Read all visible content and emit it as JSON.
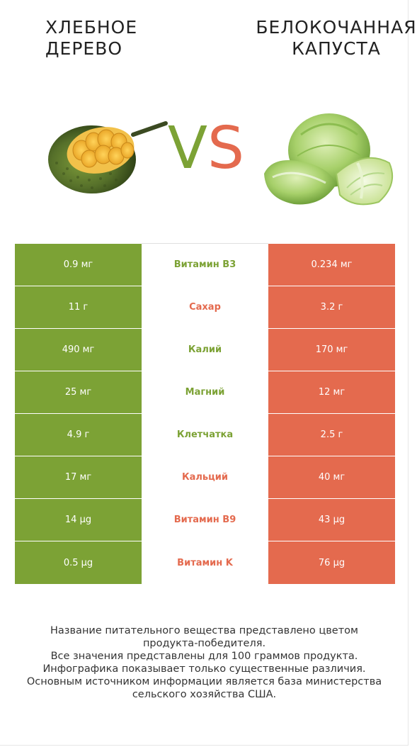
{
  "left_food": {
    "title_lines": [
      "ХЛЕБНОЕ",
      "ДЕРЕВО"
    ],
    "color": "#7ca235",
    "image": "jackfruit"
  },
  "right_food": {
    "title_lines": [
      "БЕЛОКОЧАННАЯ",
      "КАПУСТА"
    ],
    "color": "#e46a4e",
    "image": "cabbage"
  },
  "vs": {
    "v": "V",
    "s": "S"
  },
  "rows": [
    {
      "left": "0.9 мг",
      "name": "Витамин B3",
      "right": "0.234 мг",
      "winner": "left"
    },
    {
      "left": "11 г",
      "name": "Сахар",
      "right": "3.2 г",
      "winner": "right"
    },
    {
      "left": "490 мг",
      "name": "Калий",
      "right": "170 мг",
      "winner": "left"
    },
    {
      "left": "25 мг",
      "name": "Магний",
      "right": "12 мг",
      "winner": "left"
    },
    {
      "left": "4.9 г",
      "name": "Клетчатка",
      "right": "2.5 г",
      "winner": "left"
    },
    {
      "left": "17 мг",
      "name": "Кальций",
      "right": "40 мг",
      "winner": "right"
    },
    {
      "left": "14 µg",
      "name": "Витамин B9",
      "right": "43 µg",
      "winner": "right"
    },
    {
      "left": "0.5 µg",
      "name": "Витамин K",
      "right": "76 µg",
      "winner": "right"
    }
  ],
  "footer": {
    "lines": [
      "Название питательного вещества представлено цветом",
      "продукта-победителя.",
      "Все значения представлены для 100 граммов продукта.",
      "Инфографика показывает только существенные различия.",
      "Основным источником информации является база министерства",
      "сельского хозяйства США."
    ]
  }
}
